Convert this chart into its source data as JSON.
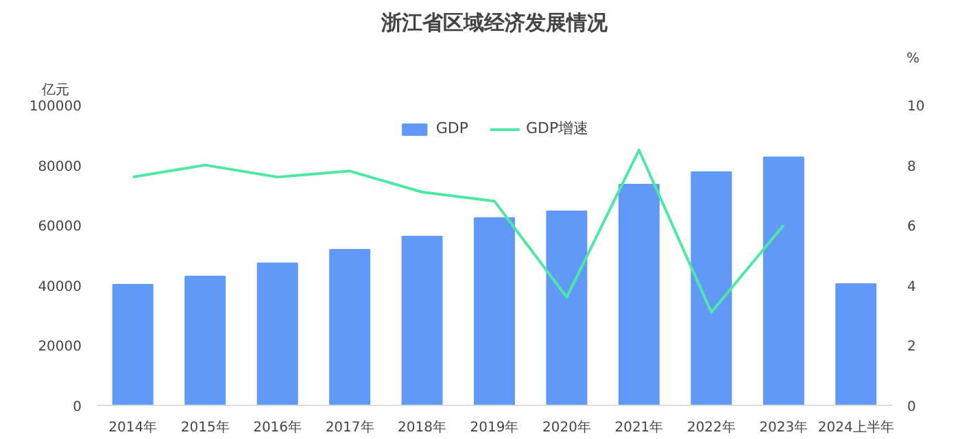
{
  "chart_data": {
    "type": "bar",
    "title": "浙江省区域经济发展情况",
    "ylabel": "亿元",
    "y2label": "%",
    "categories": [
      "2014年",
      "2015年",
      "2016年",
      "2017年",
      "2018年",
      "2019年",
      "2020年",
      "2021年",
      "2022年",
      "2023年",
      "2024上半年"
    ],
    "series": [
      {
        "name": "GDP",
        "color": "#6199f8",
        "values": [
          40200,
          42900,
          47300,
          51800,
          56200,
          62400,
          64600,
          73500,
          77700,
          82600,
          40400
        ]
      },
      {
        "name": "GDP增速",
        "type": "line",
        "axis": "y2",
        "color": "#4de8a6",
        "values": [
          7.6,
          8.0,
          7.6,
          7.8,
          7.1,
          6.8,
          3.6,
          8.5,
          3.1,
          6.0,
          null
        ]
      }
    ],
    "ylim": [
      0,
      100000
    ],
    "yticks": [
      0,
      20000,
      40000,
      60000,
      80000,
      100000
    ],
    "y2lim": [
      0,
      10
    ],
    "y2ticks": [
      0,
      2,
      4,
      6,
      8,
      10
    ],
    "grid": false,
    "legend": "top"
  }
}
